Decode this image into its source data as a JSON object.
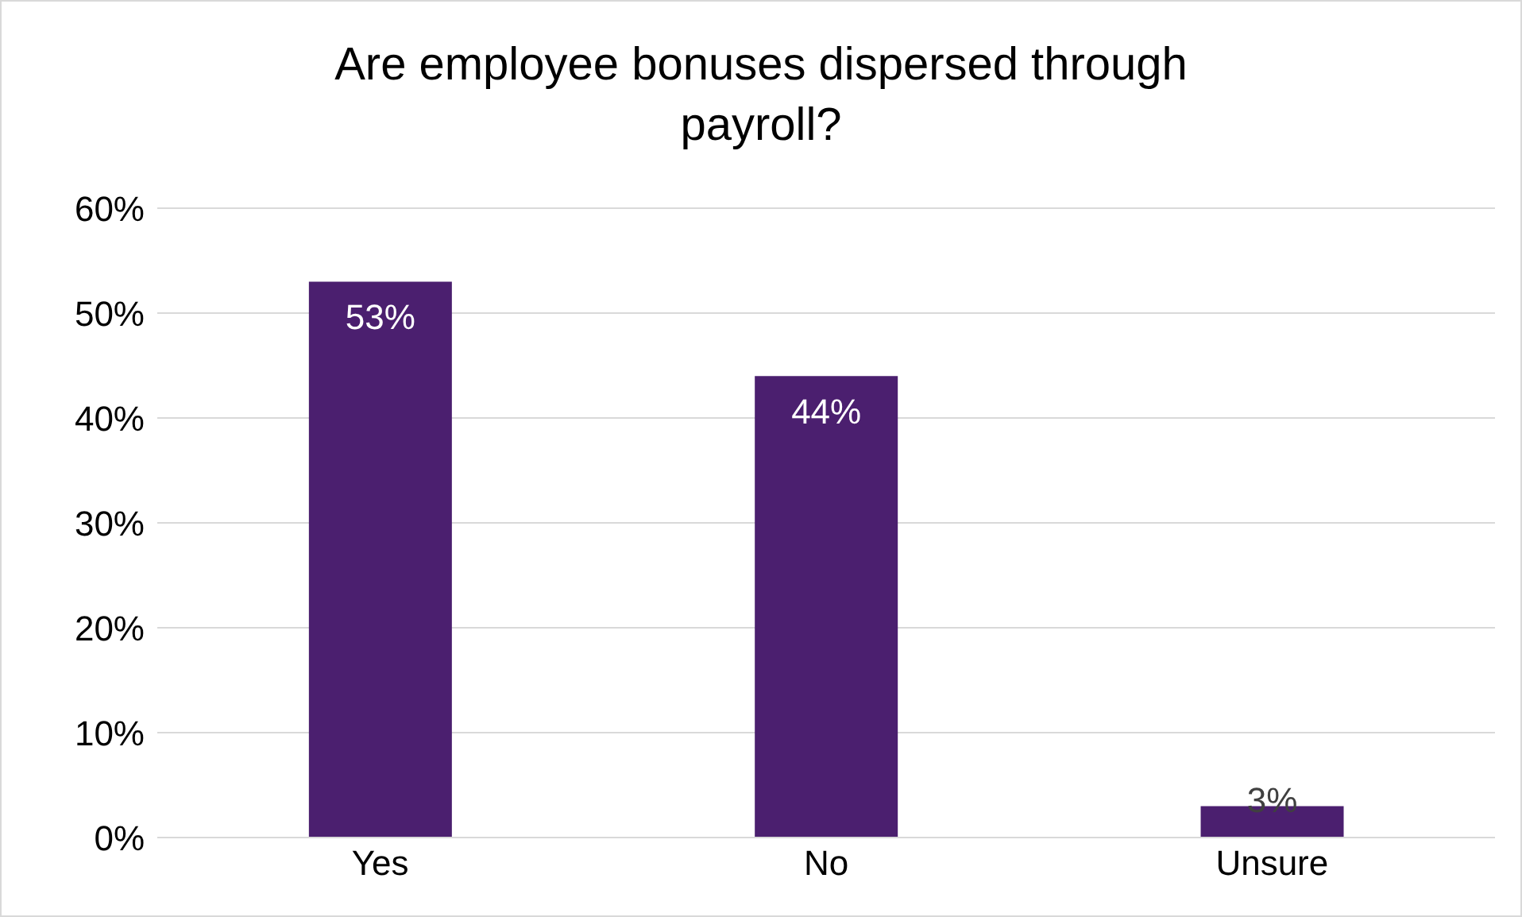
{
  "chart_data": {
    "type": "bar",
    "title": "Are employee bonuses dispersed through payroll?",
    "categories": [
      "Yes",
      "No",
      "Unsure"
    ],
    "values": [
      53,
      44,
      3
    ],
    "value_labels": [
      "53%",
      "44%",
      "3%"
    ],
    "color": "#4b1f6f",
    "ylim": [
      0,
      60
    ],
    "yticks": [
      {
        "value": 0,
        "label": "0%"
      },
      {
        "value": 10,
        "label": "10%"
      },
      {
        "value": 20,
        "label": "20%"
      },
      {
        "value": 30,
        "label": "30%"
      },
      {
        "value": 40,
        "label": "40%"
      },
      {
        "value": 50,
        "label": "50%"
      },
      {
        "value": 60,
        "label": "60%"
      }
    ],
    "grid": "y",
    "legend": false
  }
}
